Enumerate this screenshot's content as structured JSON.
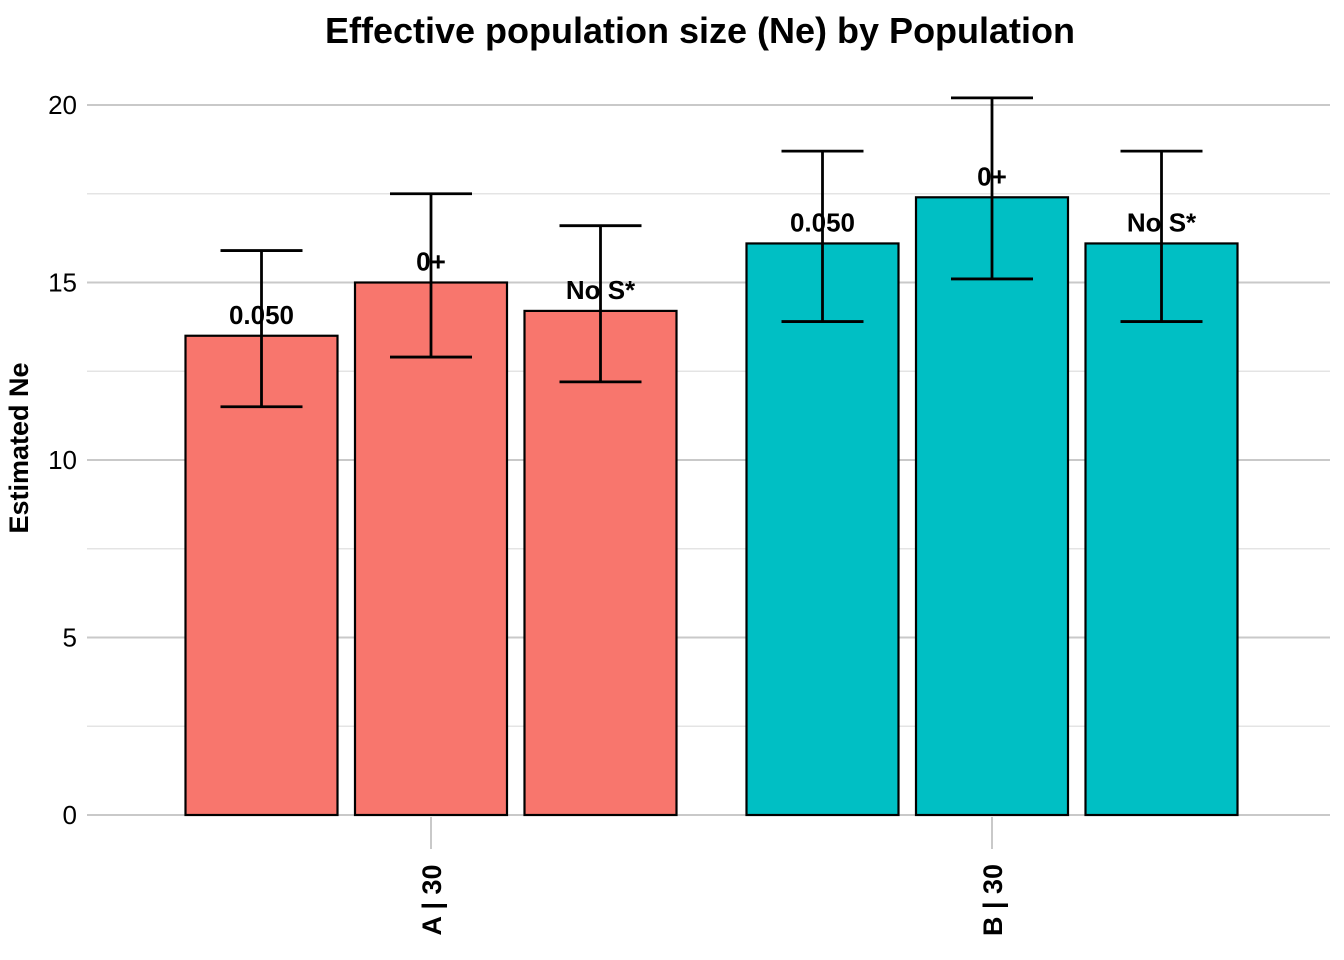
{
  "chart_data": {
    "type": "bar",
    "title": "Effective population size (Ne) by Population",
    "xlabel": "",
    "ylabel": "Estimated Ne",
    "ylim": [
      0,
      21.2
    ],
    "yticks": [
      0,
      5,
      10,
      15,
      20
    ],
    "minor_gridlines": [
      2.5,
      7.5,
      12.5,
      17.5
    ],
    "grid": "on",
    "legend": "none",
    "categories": [
      "A | 30",
      "B | 30"
    ],
    "series_labels": [
      "0.050",
      "0+",
      "No S*"
    ],
    "groups": [
      {
        "label": "A | 30",
        "color": "#F8766D",
        "bars": [
          {
            "label": "0.050",
            "value": 13.5,
            "ci_low": 11.5,
            "ci_high": 15.9
          },
          {
            "label": "0+",
            "value": 15.0,
            "ci_low": 12.9,
            "ci_high": 17.5
          },
          {
            "label": "No S*",
            "value": 14.2,
            "ci_low": 12.2,
            "ci_high": 16.6
          }
        ]
      },
      {
        "label": "B | 30",
        "color": "#00BFC4",
        "bars": [
          {
            "label": "0.050",
            "value": 16.1,
            "ci_low": 13.9,
            "ci_high": 18.7
          },
          {
            "label": "0+",
            "value": 17.4,
            "ci_low": 15.1,
            "ci_high": 20.2
          },
          {
            "label": "No S*",
            "value": 16.1,
            "ci_low": 13.9,
            "ci_high": 18.7
          }
        ]
      }
    ],
    "colors": {
      "background": "#FFFFFF",
      "bar_group_a": "#F8766D",
      "bar_group_b": "#00BFC4",
      "bar_border": "#000000",
      "error_bar": "#000000",
      "gridline_major": "#C9C9C9",
      "gridline_minor": "#E4E4E4",
      "axis_tick": "#C9C9C9",
      "text": "#000000"
    }
  }
}
